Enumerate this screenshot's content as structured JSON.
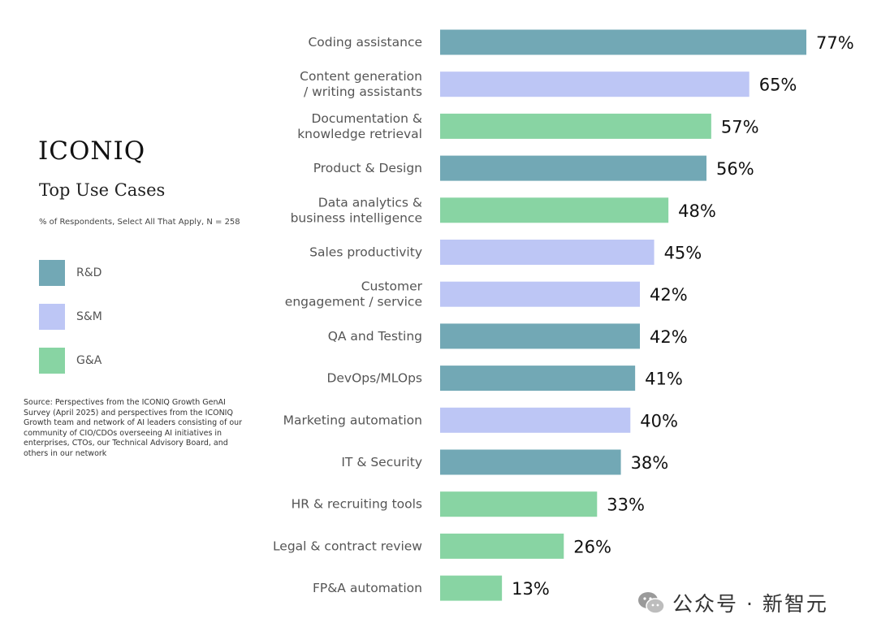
{
  "brand": "ICONIQ",
  "title": "Top Use Cases",
  "subtitle": "% of Respondents, Select All That Apply, N = 258",
  "legend": [
    {
      "label": "R&D",
      "color": "#72a8b5"
    },
    {
      "label": "S&M",
      "color": "#bdc6f5"
    },
    {
      "label": "G&A",
      "color": "#88d4a3"
    }
  ],
  "source": "Source: Perspectives from the ICONIQ Growth GenAI Survey (April 2025) and perspectives from the ICONIQ Growth team and network of AI leaders consisting of our community of CIO/CDOs overseeing AI initiatives in enterprises, CTOs, our Technical Advisory Board, and others in our network",
  "watermark": "公众号 · 新智元",
  "chart_data": {
    "type": "bar",
    "orientation": "horizontal",
    "xlim": [
      0,
      77
    ],
    "grid": false,
    "legend_position": "left",
    "unit": "%",
    "bars": [
      {
        "label": [
          "Coding assistance"
        ],
        "value": 77,
        "value_label": "77%",
        "group": "R&D"
      },
      {
        "label": [
          "Content generation",
          "/ writing assistants"
        ],
        "value": 65,
        "value_label": "65%",
        "group": "S&M"
      },
      {
        "label": [
          "Documentation &",
          "knowledge retrieval"
        ],
        "value": 57,
        "value_label": "57%",
        "group": "G&A"
      },
      {
        "label": [
          "Product & Design"
        ],
        "value": 56,
        "value_label": "56%",
        "group": "R&D"
      },
      {
        "label": [
          "Data analytics &",
          "business intelligence"
        ],
        "value": 48,
        "value_label": "48%",
        "group": "G&A"
      },
      {
        "label": [
          "Sales productivity"
        ],
        "value": 45,
        "value_label": "45%",
        "group": "S&M"
      },
      {
        "label": [
          "Customer",
          "engagement / service"
        ],
        "value": 42,
        "value_label": "42%",
        "group": "S&M"
      },
      {
        "label": [
          "QA and Testing"
        ],
        "value": 42,
        "value_label": "42%",
        "group": "R&D"
      },
      {
        "label": [
          "DevOps/MLOps"
        ],
        "value": 41,
        "value_label": "41%",
        "group": "R&D"
      },
      {
        "label": [
          "Marketing automation"
        ],
        "value": 40,
        "value_label": "40%",
        "group": "S&M"
      },
      {
        "label": [
          "IT & Security"
        ],
        "value": 38,
        "value_label": "38%",
        "group": "R&D"
      },
      {
        "label": [
          "HR & recruiting tools"
        ],
        "value": 33,
        "value_label": "33%",
        "group": "G&A"
      },
      {
        "label": [
          "Legal & contract review"
        ],
        "value": 26,
        "value_label": "26%",
        "group": "G&A"
      },
      {
        "label": [
          "FP&A automation"
        ],
        "value": 13,
        "value_label": "13%",
        "group": "G&A"
      }
    ]
  }
}
